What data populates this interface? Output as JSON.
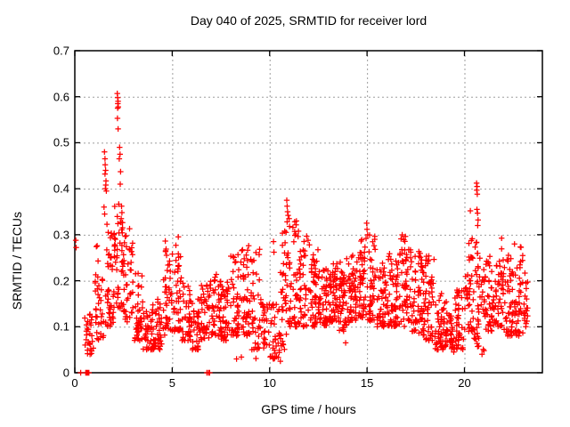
{
  "chart_data": {
    "type": "scatter",
    "title": "Day 040 of 2025, SRMTID for receiver lord",
    "xlabel": "GPS time / hours",
    "ylabel": "SRMTID / TECUs",
    "series_name": "SRMTID",
    "marker": "plus",
    "marker_color": "#ff0000",
    "grid": true,
    "grid_color": "#9e9e9e",
    "frame_color": "#000000",
    "background_color": "#ffffff",
    "xlim": [
      0,
      24
    ],
    "ylim": [
      0,
      0.7
    ],
    "xtick_values": [
      0,
      5,
      10,
      15,
      20
    ],
    "xtick_labels": [
      "0",
      "5",
      "10",
      "15",
      "20"
    ],
    "ytick_values": [
      0,
      0.1,
      0.2,
      0.3,
      0.4,
      0.5,
      0.6,
      0.7
    ],
    "ytick_labels": [
      "0",
      "0.1",
      "0.2",
      "0.3",
      "0.4",
      "0.5",
      "0.6",
      "0.7"
    ],
    "seed": 40,
    "band_bins": [
      {
        "x": 0.5,
        "w": 0.5,
        "lo": 0.04,
        "hi": 0.13,
        "n": 28
      },
      {
        "x": 1.0,
        "w": 0.5,
        "lo": 0.07,
        "hi": 0.28,
        "n": 36
      },
      {
        "x": 1.5,
        "w": 0.5,
        "lo": 0.1,
        "hi": 0.35,
        "n": 42
      },
      {
        "x": 2.0,
        "w": 0.5,
        "lo": 0.14,
        "hi": 0.38,
        "n": 48
      },
      {
        "x": 2.5,
        "w": 0.5,
        "lo": 0.11,
        "hi": 0.32,
        "n": 42
      },
      {
        "x": 3.0,
        "w": 0.5,
        "lo": 0.07,
        "hi": 0.22,
        "n": 40
      },
      {
        "x": 3.5,
        "w": 0.5,
        "lo": 0.05,
        "hi": 0.14,
        "n": 38
      },
      {
        "x": 4.0,
        "w": 0.5,
        "lo": 0.05,
        "hi": 0.16,
        "n": 40
      },
      {
        "x": 4.5,
        "w": 0.5,
        "lo": 0.08,
        "hi": 0.3,
        "n": 44
      },
      {
        "x": 5.0,
        "w": 0.5,
        "lo": 0.09,
        "hi": 0.3,
        "n": 42
      },
      {
        "x": 5.5,
        "w": 0.5,
        "lo": 0.07,
        "hi": 0.2,
        "n": 40
      },
      {
        "x": 6.0,
        "w": 0.5,
        "lo": 0.05,
        "hi": 0.17,
        "n": 38
      },
      {
        "x": 6.5,
        "w": 0.5,
        "lo": 0.07,
        "hi": 0.2,
        "n": 40
      },
      {
        "x": 7.0,
        "w": 0.5,
        "lo": 0.08,
        "hi": 0.22,
        "n": 44
      },
      {
        "x": 7.5,
        "w": 0.5,
        "lo": 0.07,
        "hi": 0.2,
        "n": 44
      },
      {
        "x": 8.0,
        "w": 0.5,
        "lo": 0.08,
        "hi": 0.26,
        "n": 44
      },
      {
        "x": 8.5,
        "w": 0.5,
        "lo": 0.08,
        "hi": 0.28,
        "n": 44
      },
      {
        "x": 9.0,
        "w": 0.5,
        "lo": 0.05,
        "hi": 0.27,
        "n": 36
      },
      {
        "x": 9.5,
        "w": 0.5,
        "lo": 0.05,
        "hi": 0.16,
        "n": 30
      },
      {
        "x": 10.0,
        "w": 0.5,
        "lo": 0.03,
        "hi": 0.15,
        "n": 32
      },
      {
        "x": 10.5,
        "w": 0.5,
        "lo": 0.05,
        "hi": 0.31,
        "n": 42
      },
      {
        "x": 11.0,
        "w": 0.5,
        "lo": 0.1,
        "hi": 0.33,
        "n": 44
      },
      {
        "x": 11.5,
        "w": 0.5,
        "lo": 0.1,
        "hi": 0.3,
        "n": 44
      },
      {
        "x": 12.0,
        "w": 0.5,
        "lo": 0.1,
        "hi": 0.28,
        "n": 48
      },
      {
        "x": 12.5,
        "w": 0.5,
        "lo": 0.1,
        "hi": 0.23,
        "n": 50
      },
      {
        "x": 13.0,
        "w": 0.5,
        "lo": 0.11,
        "hi": 0.24,
        "n": 52
      },
      {
        "x": 13.5,
        "w": 0.5,
        "lo": 0.09,
        "hi": 0.25,
        "n": 52
      },
      {
        "x": 14.0,
        "w": 0.5,
        "lo": 0.11,
        "hi": 0.26,
        "n": 52
      },
      {
        "x": 14.5,
        "w": 0.5,
        "lo": 0.12,
        "hi": 0.29,
        "n": 48
      },
      {
        "x": 15.0,
        "w": 0.5,
        "lo": 0.11,
        "hi": 0.3,
        "n": 44
      },
      {
        "x": 15.5,
        "w": 0.5,
        "lo": 0.1,
        "hi": 0.24,
        "n": 48
      },
      {
        "x": 16.0,
        "w": 0.5,
        "lo": 0.1,
        "hi": 0.26,
        "n": 48
      },
      {
        "x": 16.5,
        "w": 0.5,
        "lo": 0.1,
        "hi": 0.3,
        "n": 48
      },
      {
        "x": 17.0,
        "w": 0.5,
        "lo": 0.09,
        "hi": 0.27,
        "n": 48
      },
      {
        "x": 17.5,
        "w": 0.5,
        "lo": 0.08,
        "hi": 0.27,
        "n": 48
      },
      {
        "x": 18.0,
        "w": 0.5,
        "lo": 0.07,
        "hi": 0.26,
        "n": 44
      },
      {
        "x": 18.5,
        "w": 0.5,
        "lo": 0.05,
        "hi": 0.18,
        "n": 42
      },
      {
        "x": 19.0,
        "w": 0.5,
        "lo": 0.05,
        "hi": 0.16,
        "n": 42
      },
      {
        "x": 19.5,
        "w": 0.5,
        "lo": 0.05,
        "hi": 0.18,
        "n": 42
      },
      {
        "x": 20.0,
        "w": 0.5,
        "lo": 0.09,
        "hi": 0.3,
        "n": 42
      },
      {
        "x": 20.5,
        "w": 0.5,
        "lo": 0.05,
        "hi": 0.3,
        "n": 42
      },
      {
        "x": 21.0,
        "w": 0.5,
        "lo": 0.09,
        "hi": 0.26,
        "n": 46
      },
      {
        "x": 21.5,
        "w": 0.5,
        "lo": 0.1,
        "hi": 0.3,
        "n": 46
      },
      {
        "x": 22.0,
        "w": 0.5,
        "lo": 0.08,
        "hi": 0.26,
        "n": 46
      },
      {
        "x": 22.5,
        "w": 0.5,
        "lo": 0.08,
        "hi": 0.28,
        "n": 46
      },
      {
        "x": 23.0,
        "w": 0.25,
        "lo": 0.1,
        "hi": 0.22,
        "n": 20
      }
    ],
    "outliers": [
      [
        0.05,
        0.288
      ],
      [
        0.07,
        0.272
      ],
      [
        1.52,
        0.48
      ],
      [
        1.55,
        0.465
      ],
      [
        1.56,
        0.452
      ],
      [
        1.58,
        0.44
      ],
      [
        1.55,
        0.432
      ],
      [
        1.6,
        0.417
      ],
      [
        1.59,
        0.408
      ],
      [
        1.57,
        0.4
      ],
      [
        1.62,
        0.395
      ],
      [
        1.5,
        0.36
      ],
      [
        1.53,
        0.345
      ],
      [
        2.18,
        0.607
      ],
      [
        2.2,
        0.598
      ],
      [
        2.22,
        0.59
      ],
      [
        2.21,
        0.585
      ],
      [
        2.23,
        0.578
      ],
      [
        2.2,
        0.575
      ],
      [
        2.19,
        0.553
      ],
      [
        2.22,
        0.53
      ],
      [
        2.3,
        0.49
      ],
      [
        2.32,
        0.475
      ],
      [
        2.28,
        0.465
      ],
      [
        2.35,
        0.437
      ],
      [
        2.33,
        0.41
      ],
      [
        2.4,
        0.362
      ],
      [
        2.42,
        0.348
      ],
      [
        2.38,
        0.335
      ],
      [
        2.45,
        0.315
      ],
      [
        10.2,
        0.285
      ],
      [
        10.22,
        0.262
      ],
      [
        10.88,
        0.375
      ],
      [
        10.9,
        0.362
      ],
      [
        10.92,
        0.35
      ],
      [
        10.95,
        0.342
      ],
      [
        11.0,
        0.335
      ],
      [
        10.9,
        0.328
      ],
      [
        11.02,
        0.318
      ],
      [
        14.98,
        0.325
      ],
      [
        15.0,
        0.312
      ],
      [
        15.03,
        0.3
      ],
      [
        14.95,
        0.292
      ],
      [
        20.62,
        0.412
      ],
      [
        20.65,
        0.405
      ],
      [
        20.63,
        0.397
      ],
      [
        20.66,
        0.388
      ],
      [
        20.3,
        0.352
      ],
      [
        20.64,
        0.355
      ],
      [
        20.67,
        0.347
      ],
      [
        20.7,
        0.332
      ],
      [
        20.68,
        0.32
      ],
      [
        8.3,
        0.03
      ],
      [
        8.55,
        0.034
      ],
      [
        9.3,
        0.031
      ],
      [
        10.35,
        0.035
      ],
      [
        10.55,
        0.025
      ],
      [
        13.9,
        0.065
      ],
      [
        18.6,
        0.05
      ],
      [
        19.45,
        0.045
      ],
      [
        20.9,
        0.04
      ],
      [
        21.0,
        0.048
      ]
    ],
    "zero_points": [
      0.3,
      0.56,
      0.6,
      0.64,
      0.68,
      0.72,
      6.78,
      6.86,
      6.92
    ]
  }
}
